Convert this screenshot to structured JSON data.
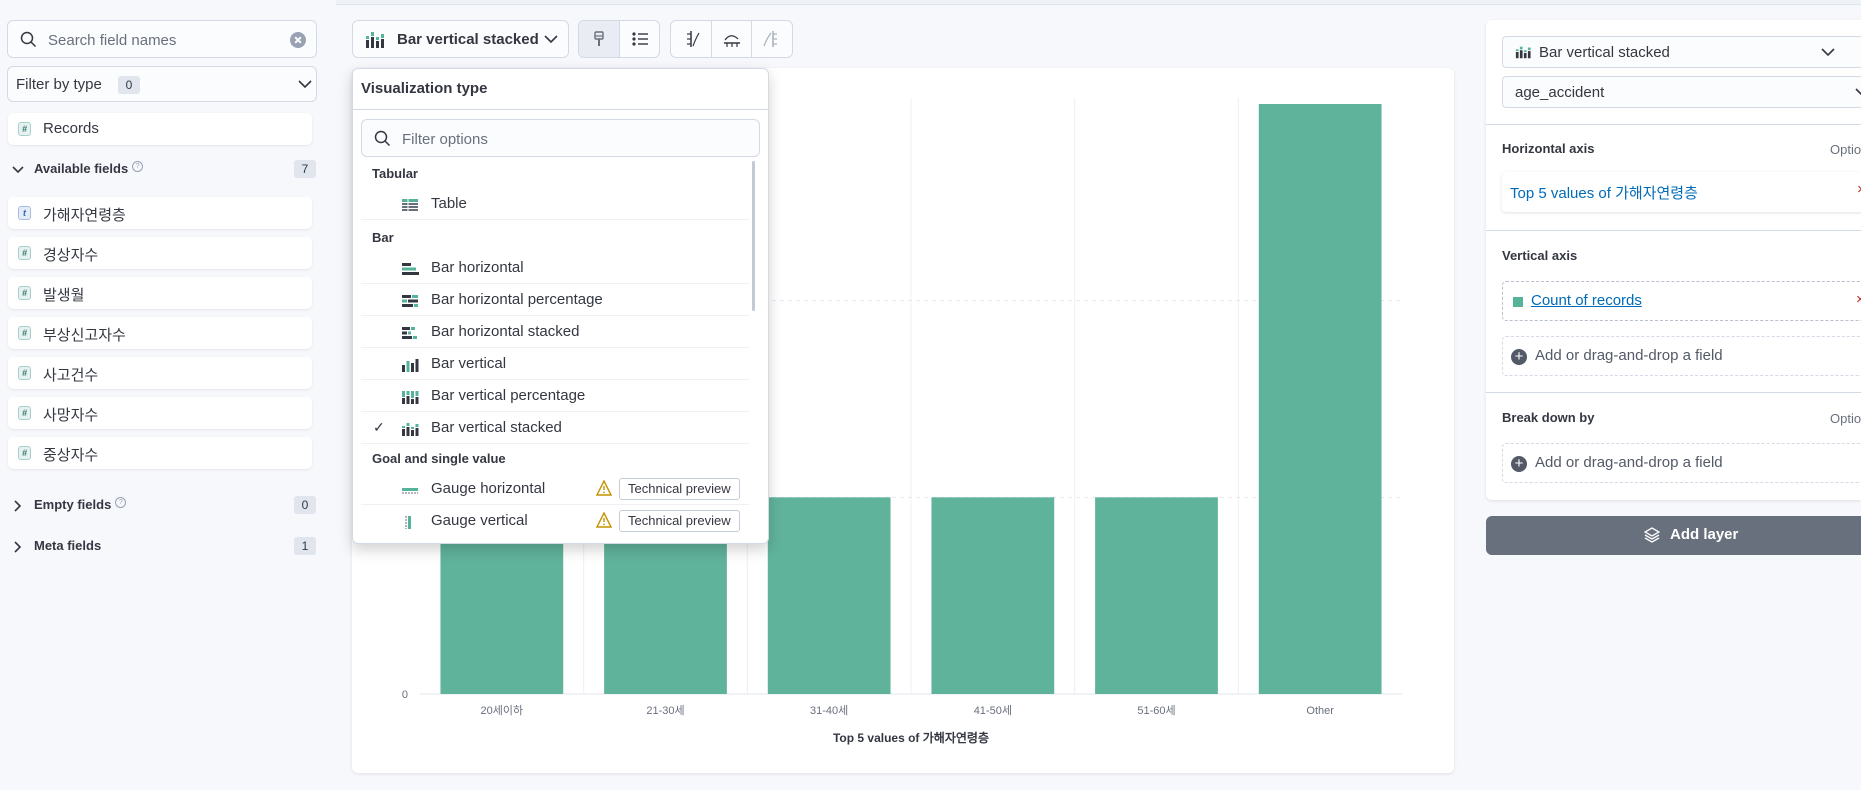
{
  "sidebar": {
    "search_placeholder": "Search field names",
    "filter_by_type_label": "Filter by type",
    "filter_by_type_count": "0",
    "records_label": "Records",
    "available_label": "Available fields",
    "available_count": "7",
    "fields": [
      {
        "type": "t",
        "name": "가해자연령층"
      },
      {
        "type": "#",
        "name": "경상자수"
      },
      {
        "type": "#",
        "name": "발생월"
      },
      {
        "type": "#",
        "name": "부상신고자수"
      },
      {
        "type": "#",
        "name": "사고건수"
      },
      {
        "type": "#",
        "name": "사망자수"
      },
      {
        "type": "#",
        "name": "중상자수"
      }
    ],
    "empty_label": "Empty fields",
    "empty_count": "0",
    "meta_label": "Meta fields",
    "meta_count": "1"
  },
  "toolbar": {
    "vis_button_label": "Bar vertical stacked"
  },
  "popover": {
    "title": "Visualization type",
    "filter_placeholder": "Filter options",
    "groups": {
      "tabular": "Tabular",
      "bar": "Bar",
      "goal": "Goal and single value"
    },
    "options": {
      "table": "Table",
      "bar_horizontal": "Bar horizontal",
      "bar_horizontal_percentage": "Bar horizontal percentage",
      "bar_horizontal_stacked": "Bar horizontal stacked",
      "bar_vertical": "Bar vertical",
      "bar_vertical_percentage": "Bar vertical percentage",
      "bar_vertical_stacked": "Bar vertical stacked",
      "gauge_horizontal": "Gauge horizontal",
      "gauge_vertical": "Gauge vertical"
    },
    "selected": "bar_vertical_stacked",
    "technical_preview": "Technical preview"
  },
  "chart_data": {
    "type": "bar",
    "categories": [
      "20세이하",
      "21-30세",
      "31-40세",
      "41-50세",
      "51-60세",
      "Other"
    ],
    "values": [
      1,
      1,
      1,
      1,
      1,
      3
    ],
    "y_tick_labels": [
      "0"
    ],
    "xlabel": "Top 5 values of 가해자연령층",
    "ylabel": "",
    "ylim": [
      0,
      3
    ],
    "color": "#60b39b",
    "grid": true
  },
  "config": {
    "layer_type_label": "Bar vertical stacked",
    "data_view_label": "age_accident",
    "horizontal_axis_label": "Horizontal axis",
    "horizontal_optional": "Optio",
    "horizontal_value": "Top 5 values of 가해자연령층",
    "vertical_axis_label": "Vertical axis",
    "vertical_value": "Count of records",
    "add_field_label": "Add or drag-and-drop a field",
    "break_down_label": "Break down by",
    "break_down_optional": "Optio",
    "add_layer_label": "Add layer",
    "remove_symbol": "×"
  }
}
